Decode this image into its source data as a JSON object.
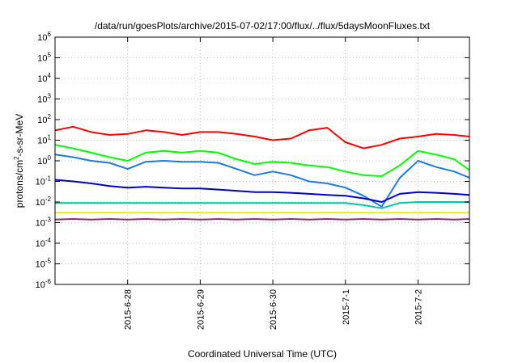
{
  "chart_data": {
    "type": "line",
    "title": "/data/run/goesPlots/archive/2015-07-02/17:00/flux/../flux/5daysMoonFluxes.txt",
    "xlabel": "Coordinated Universal Time (UTC)",
    "ylabel": {
      "prefix": "protons/cm",
      "sup": "2",
      "suffix": "-s-sr-MeV"
    },
    "yscale": "log",
    "ylim_exp": [
      -6,
      6
    ],
    "y_ticks": [
      {
        "base": "10",
        "exp": "-6"
      },
      {
        "base": "10",
        "exp": "-5"
      },
      {
        "base": "10",
        "exp": "-4"
      },
      {
        "base": "10",
        "exp": "-3"
      },
      {
        "base": "10",
        "exp": "-2"
      },
      {
        "base": "10",
        "exp": "-1"
      },
      {
        "base": "10",
        "exp": "0"
      },
      {
        "base": "10",
        "exp": "1"
      },
      {
        "base": "10",
        "exp": "2"
      },
      {
        "base": "10",
        "exp": "3"
      },
      {
        "base": "10",
        "exp": "4"
      },
      {
        "base": "10",
        "exp": "5"
      },
      {
        "base": "10",
        "exp": "6"
      }
    ],
    "x_ticks": [
      "2015-6-28",
      "2015-6-29",
      "2015-6-30",
      "2015-7-1",
      "2015-7-2"
    ],
    "xlim": [
      "2015-06-27 00:00",
      "2015-07-02 17:00"
    ],
    "grid": true,
    "x": [
      "2015-06-27 00:00",
      "2015-06-27 06:00",
      "2015-06-27 12:00",
      "2015-06-27 18:00",
      "2015-06-28 00:00",
      "2015-06-28 06:00",
      "2015-06-28 12:00",
      "2015-06-28 18:00",
      "2015-06-29 00:00",
      "2015-06-29 06:00",
      "2015-06-29 12:00",
      "2015-06-29 18:00",
      "2015-06-30 00:00",
      "2015-06-30 06:00",
      "2015-06-30 12:00",
      "2015-06-30 18:00",
      "2015-07-01 00:00",
      "2015-07-01 06:00",
      "2015-07-01 12:00",
      "2015-07-01 18:00",
      "2015-07-02 00:00",
      "2015-07-02 06:00",
      "2015-07-02 12:00",
      "2015-07-02 17:00"
    ],
    "series": [
      {
        "color": "#ff0000",
        "values": [
          30,
          45,
          25,
          18,
          20,
          30,
          25,
          18,
          25,
          25,
          20,
          15,
          10,
          12,
          30,
          40,
          8,
          4,
          6,
          12,
          15,
          20,
          18,
          15
        ]
      },
      {
        "color": "#00ff00",
        "values": [
          6,
          4,
          2.5,
          1.5,
          1,
          2.5,
          3,
          2.5,
          3,
          2.5,
          1.2,
          0.7,
          0.9,
          0.8,
          0.6,
          0.5,
          0.3,
          0.2,
          0.18,
          0.6,
          3,
          2,
          1.2,
          0.35
        ]
      },
      {
        "color": "#1e7ae6",
        "values": [
          2,
          1.5,
          1,
          0.8,
          0.4,
          0.9,
          1,
          0.9,
          0.9,
          0.8,
          0.4,
          0.2,
          0.3,
          0.2,
          0.1,
          0.08,
          0.05,
          0.02,
          0.006,
          0.15,
          1,
          0.5,
          0.3,
          0.15
        ]
      },
      {
        "color": "#0000cc",
        "values": [
          0.12,
          0.1,
          0.08,
          0.06,
          0.05,
          0.055,
          0.05,
          0.045,
          0.045,
          0.04,
          0.035,
          0.03,
          0.03,
          0.028,
          0.025,
          0.022,
          0.02,
          0.015,
          0.01,
          0.025,
          0.03,
          0.028,
          0.025,
          0.022
        ]
      },
      {
        "color": "#00c8a0",
        "values": [
          0.009,
          0.009,
          0.009,
          0.009,
          0.009,
          0.009,
          0.009,
          0.009,
          0.009,
          0.009,
          0.009,
          0.009,
          0.009,
          0.009,
          0.009,
          0.009,
          0.009,
          0.007,
          0.005,
          0.009,
          0.01,
          0.01,
          0.01,
          0.01
        ]
      },
      {
        "color": "#eeee00",
        "values": [
          0.003,
          0.003,
          0.003,
          0.003,
          0.003,
          0.003,
          0.003,
          0.003,
          0.003,
          0.003,
          0.003,
          0.003,
          0.003,
          0.003,
          0.003,
          0.003,
          0.003,
          0.003,
          0.003,
          0.003,
          0.003,
          0.003,
          0.003,
          0.003
        ]
      },
      {
        "color": "#8b2f6e",
        "values": [
          0.0014,
          0.0015,
          0.0014,
          0.0015,
          0.0014,
          0.0015,
          0.0014,
          0.0015,
          0.0014,
          0.0015,
          0.0014,
          0.0015,
          0.0014,
          0.0015,
          0.0014,
          0.0015,
          0.0014,
          0.0015,
          0.0014,
          0.0015,
          0.0014,
          0.0015,
          0.0014,
          0.0015
        ]
      }
    ]
  }
}
